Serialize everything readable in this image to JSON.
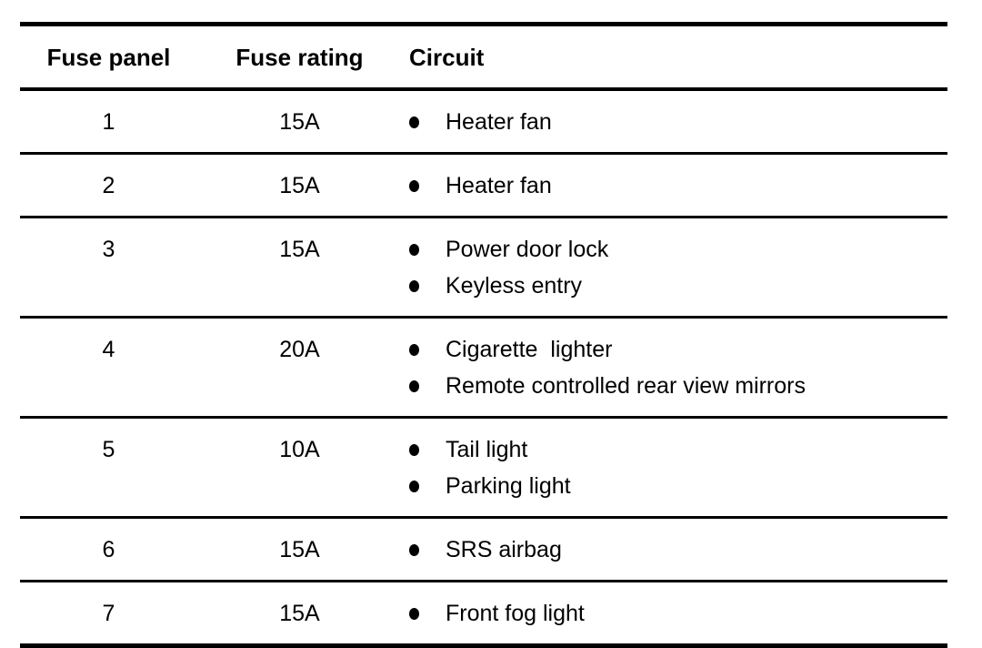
{
  "page": {
    "background_color": "#ffffff",
    "text_color": "#000000",
    "rule_color": "#000000"
  },
  "table": {
    "columns": [
      "Fuse panel",
      "Fuse rating",
      "Circuit"
    ],
    "bullet_icon": "filled-circle",
    "rows": [
      {
        "panel": "1",
        "rating": "15A",
        "circuits": [
          "Heater fan"
        ]
      },
      {
        "panel": "2",
        "rating": "15A",
        "circuits": [
          "Heater fan"
        ]
      },
      {
        "panel": "3",
        "rating": "15A",
        "circuits": [
          "Power door lock",
          "Keyless entry"
        ]
      },
      {
        "panel": "4",
        "rating": "20A",
        "circuits": [
          "Cigarette  lighter",
          "Remote controlled rear view mirrors"
        ]
      },
      {
        "panel": "5",
        "rating": "10A",
        "circuits": [
          "Tail light",
          "Parking light"
        ]
      },
      {
        "panel": "6",
        "rating": "15A",
        "circuits": [
          "SRS airbag"
        ]
      },
      {
        "panel": "7",
        "rating": "15A",
        "circuits": [
          "Front fog light"
        ]
      }
    ]
  }
}
